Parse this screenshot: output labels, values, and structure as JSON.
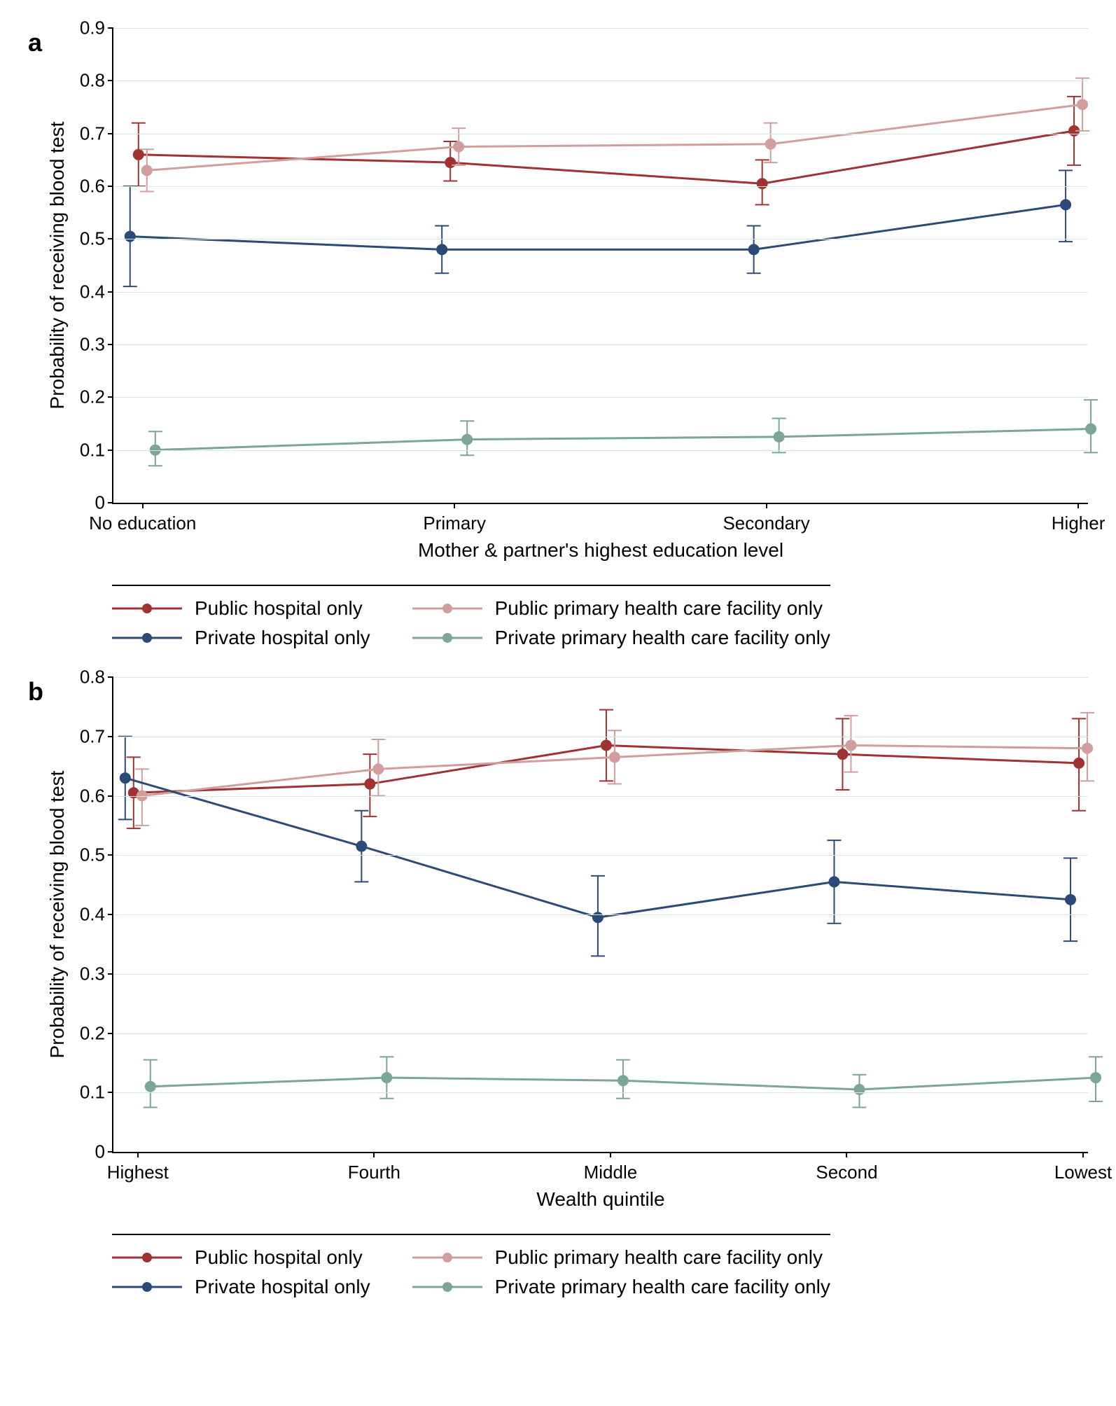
{
  "colors": {
    "public_hospital": "#a03232",
    "public_primary": "#d19d9d",
    "private_hospital": "#2b4a78",
    "private_primary": "#7ba597",
    "grid": "#d4e8e0",
    "background": "#ffffff",
    "axis": "#000000"
  },
  "marker_radius": 8,
  "line_width": 3,
  "errorbar_width": 2,
  "errorbar_cap": 10,
  "tick_fontsize": 26,
  "axis_title_fontsize": 28,
  "legend_fontsize": 28,
  "panel_label_fontsize": 36,
  "panel_a": {
    "label": "a",
    "y_title": "Probability of receiving blood test",
    "x_title": "Mother & partner's highest education level",
    "ylim": [
      0,
      0.9
    ],
    "yticks": [
      0,
      0.1,
      0.2,
      0.3,
      0.4,
      0.5,
      0.6,
      0.7,
      0.8,
      0.9
    ],
    "categories": [
      "No education",
      "Primary",
      "Secondary",
      "Higher"
    ],
    "x_positions": [
      0.03,
      0.35,
      0.67,
      0.99
    ],
    "series": [
      {
        "name": "Public hospital only",
        "color_key": "public_hospital",
        "y": [
          0.66,
          0.645,
          0.605,
          0.705
        ],
        "err_low": [
          0.6,
          0.61,
          0.565,
          0.64
        ],
        "err_high": [
          0.72,
          0.685,
          0.65,
          0.77
        ]
      },
      {
        "name": "Public primary health care facility only",
        "color_key": "public_primary",
        "y": [
          0.63,
          0.675,
          0.68,
          0.755
        ],
        "err_low": [
          0.59,
          0.64,
          0.645,
          0.705
        ],
        "err_high": [
          0.67,
          0.71,
          0.72,
          0.805
        ]
      },
      {
        "name": "Private hospital only",
        "color_key": "private_hospital",
        "y": [
          0.505,
          0.48,
          0.48,
          0.565
        ],
        "err_low": [
          0.41,
          0.435,
          0.435,
          0.495
        ],
        "err_high": [
          0.6,
          0.525,
          0.525,
          0.63
        ]
      },
      {
        "name": "Private primary health care facility only",
        "color_key": "private_primary",
        "y": [
          0.1,
          0.12,
          0.125,
          0.14
        ],
        "err_low": [
          0.07,
          0.09,
          0.095,
          0.095
        ],
        "err_high": [
          0.135,
          0.155,
          0.16,
          0.195
        ]
      }
    ]
  },
  "panel_b": {
    "label": "b",
    "y_title": "Probability of receiving blood test",
    "x_title": "Wealth quintile",
    "ylim": [
      0,
      0.8
    ],
    "yticks": [
      0,
      0.1,
      0.2,
      0.3,
      0.4,
      0.5,
      0.6,
      0.7,
      0.8
    ],
    "categories": [
      "Highest",
      "Fourth",
      "Middle",
      "Second",
      "Lowest"
    ],
    "x_positions": [
      0.025,
      0.2675,
      0.51,
      0.7525,
      0.995
    ],
    "series": [
      {
        "name": "Public hospital only",
        "color_key": "public_hospital",
        "y": [
          0.605,
          0.62,
          0.685,
          0.67,
          0.655
        ],
        "err_low": [
          0.545,
          0.565,
          0.625,
          0.61,
          0.575
        ],
        "err_high": [
          0.665,
          0.67,
          0.745,
          0.73,
          0.73
        ]
      },
      {
        "name": "Public primary health care facility only",
        "color_key": "public_primary",
        "y": [
          0.6,
          0.645,
          0.665,
          0.685,
          0.68
        ],
        "err_low": [
          0.55,
          0.6,
          0.62,
          0.64,
          0.625
        ],
        "err_high": [
          0.645,
          0.695,
          0.71,
          0.735,
          0.74
        ]
      },
      {
        "name": "Private hospital only",
        "color_key": "private_hospital",
        "y": [
          0.63,
          0.515,
          0.395,
          0.455,
          0.425
        ],
        "err_low": [
          0.56,
          0.455,
          0.33,
          0.385,
          0.355
        ],
        "err_high": [
          0.7,
          0.575,
          0.465,
          0.525,
          0.495
        ]
      },
      {
        "name": "Private primary health care facility only",
        "color_key": "private_primary",
        "y": [
          0.11,
          0.125,
          0.12,
          0.105,
          0.125
        ],
        "err_low": [
          0.075,
          0.09,
          0.09,
          0.075,
          0.085
        ],
        "err_high": [
          0.155,
          0.16,
          0.155,
          0.13,
          0.16
        ]
      }
    ]
  },
  "legend_order": [
    "public_hospital",
    "public_primary",
    "private_hospital",
    "private_primary"
  ],
  "legend_labels": {
    "public_hospital": "Public hospital only",
    "public_primary": "Public primary health care facility only",
    "private_hospital": "Private hospital only",
    "private_primary": "Private primary health care facility only"
  }
}
